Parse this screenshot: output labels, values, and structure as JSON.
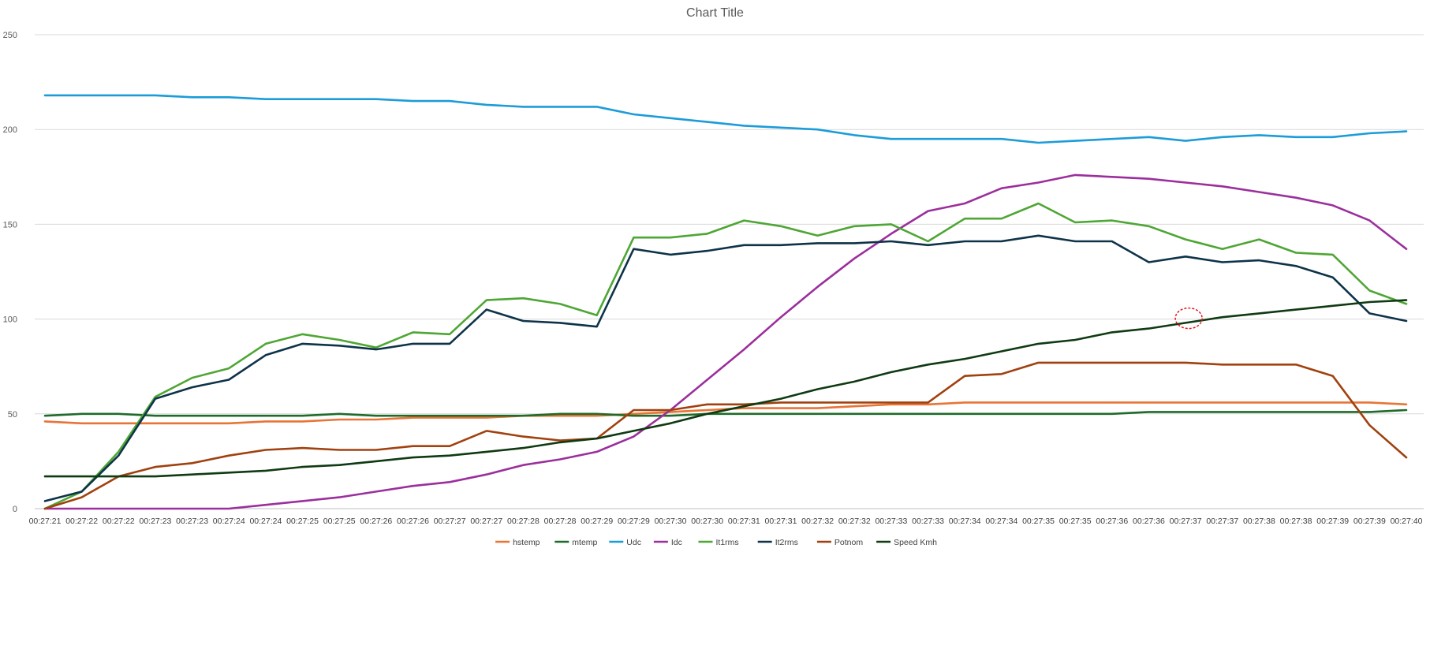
{
  "chart_data": {
    "type": "line",
    "title": "Chart Title",
    "xlabel": "",
    "ylabel": "",
    "ylim": [
      0,
      250
    ],
    "yticks": [
      0,
      50,
      100,
      150,
      200,
      250
    ],
    "grid": true,
    "legend_position": "bottom",
    "categories": [
      "00:27:21",
      "00:27:22",
      "00:27:22",
      "00:27:23",
      "00:27:23",
      "00:27:24",
      "00:27:24",
      "00:27:25",
      "00:27:25",
      "00:27:26",
      "00:27:26",
      "00:27:27",
      "00:27:27",
      "00:27:28",
      "00:27:28",
      "00:27:29",
      "00:27:29",
      "00:27:30",
      "00:27:30",
      "00:27:31",
      "00:27:31",
      "00:27:32",
      "00:27:32",
      "00:27:33",
      "00:27:33",
      "00:27:34",
      "00:27:34",
      "00:27:35",
      "00:27:35",
      "00:27:36",
      "00:27:36",
      "00:27:37",
      "00:27:37",
      "00:27:38",
      "00:27:38",
      "00:27:39",
      "00:27:39",
      "00:27:40"
    ],
    "series": [
      {
        "name": "hstemp",
        "color": "#E87436",
        "values": [
          46,
          45,
          45,
          45,
          45,
          45,
          46,
          46,
          47,
          47,
          48,
          48,
          48,
          49,
          49,
          49,
          50,
          51,
          52,
          53,
          53,
          53,
          54,
          55,
          55,
          56,
          56,
          56,
          56,
          56,
          56,
          56,
          56,
          56,
          56,
          56,
          56,
          55
        ]
      },
      {
        "name": "mtemp",
        "color": "#1F6B2A",
        "values": [
          49,
          50,
          50,
          49,
          49,
          49,
          49,
          49,
          50,
          49,
          49,
          49,
          49,
          49,
          50,
          50,
          49,
          49,
          50,
          50,
          50,
          50,
          50,
          50,
          50,
          50,
          50,
          50,
          50,
          50,
          51,
          51,
          51,
          51,
          51,
          51,
          51,
          52
        ]
      },
      {
        "name": "Udc",
        "color": "#1C9CD8",
        "values": [
          218,
          218,
          218,
          218,
          217,
          217,
          216,
          216,
          216,
          216,
          215,
          215,
          213,
          212,
          212,
          212,
          208,
          206,
          204,
          202,
          201,
          200,
          197,
          195,
          195,
          195,
          195,
          193,
          194,
          195,
          196,
          194,
          196,
          197,
          196,
          196,
          198,
          199
        ]
      },
      {
        "name": "Idc",
        "color": "#9B2F9C",
        "values": [
          0,
          0,
          0,
          0,
          0,
          0,
          2,
          4,
          6,
          9,
          12,
          14,
          18,
          23,
          26,
          30,
          38,
          52,
          68,
          84,
          101,
          117,
          132,
          145,
          157,
          161,
          169,
          172,
          176,
          175,
          174,
          172,
          170,
          167,
          164,
          160,
          152,
          137
        ]
      },
      {
        "name": "It1rms",
        "color": "#4EA634",
        "values": [
          0,
          9,
          30,
          59,
          69,
          74,
          87,
          92,
          89,
          85,
          93,
          92,
          110,
          111,
          108,
          102,
          143,
          143,
          145,
          152,
          149,
          144,
          149,
          150,
          141,
          153,
          153,
          161,
          151,
          152,
          149,
          142,
          137,
          142,
          135,
          134,
          115,
          108
        ]
      },
      {
        "name": "It2rms",
        "color": "#0E3349",
        "values": [
          4,
          9,
          28,
          58,
          64,
          68,
          81,
          87,
          86,
          84,
          87,
          87,
          105,
          99,
          98,
          96,
          137,
          134,
          136,
          139,
          139,
          140,
          140,
          141,
          139,
          141,
          141,
          144,
          141,
          141,
          130,
          133,
          130,
          131,
          128,
          122,
          103,
          99
        ]
      },
      {
        "name": "Potnom",
        "color": "#A0410F",
        "values": [
          0,
          6,
          17,
          22,
          24,
          28,
          31,
          32,
          31,
          31,
          33,
          33,
          41,
          38,
          36,
          37,
          52,
          52,
          55,
          55,
          56,
          56,
          56,
          56,
          56,
          70,
          71,
          77,
          77,
          77,
          77,
          77,
          76,
          76,
          76,
          70,
          44,
          27
        ]
      },
      {
        "name": "Speed Kmh",
        "color": "#0F3A12",
        "values": [
          17,
          17,
          17,
          17,
          18,
          19,
          20,
          22,
          23,
          25,
          27,
          28,
          30,
          32,
          35,
          37,
          41,
          45,
          50,
          54,
          58,
          63,
          67,
          72,
          76,
          79,
          83,
          87,
          89,
          93,
          95,
          98,
          101,
          103,
          105,
          107,
          109,
          110
        ]
      }
    ],
    "annotations": [
      {
        "type": "circle",
        "color": "#E8161B",
        "category": "00:27:37",
        "value": 100
      }
    ]
  }
}
